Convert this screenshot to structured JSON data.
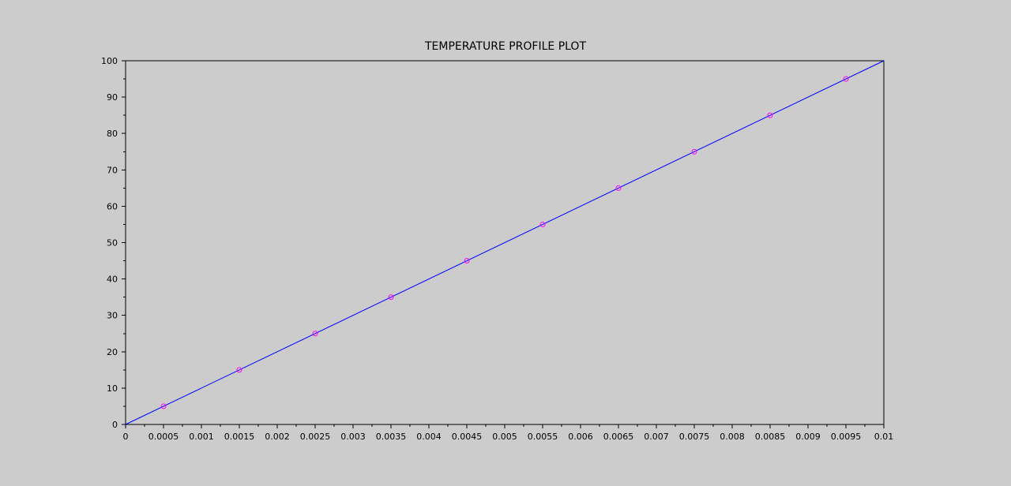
{
  "chart_data": {
    "type": "line",
    "title": "TEMPERATURE PROFILE PLOT",
    "xlabel": "",
    "ylabel": "",
    "xlim": [
      0,
      0.01
    ],
    "ylim": [
      0,
      100
    ],
    "x_ticks": [
      "0",
      "0.0005",
      "0.001",
      "0.0015",
      "0.002",
      "0.0025",
      "0.003",
      "0.0035",
      "0.004",
      "0.0045",
      "0.005",
      "0.0055",
      "0.006",
      "0.0065",
      "0.007",
      "0.0075",
      "0.008",
      "0.0085",
      "0.009",
      "0.0095",
      "0.01"
    ],
    "y_ticks": [
      "0",
      "10",
      "20",
      "30",
      "40",
      "50",
      "60",
      "70",
      "80",
      "90",
      "100"
    ],
    "grid": false,
    "legend": "none",
    "series": [
      {
        "style": "line",
        "color": "#0000ff",
        "x": [
          0,
          0.01
        ],
        "y": [
          0,
          100
        ]
      },
      {
        "style": "markers",
        "marker": "circle",
        "color": "#ff00ff",
        "x": [
          0.0005,
          0.0015,
          0.0025,
          0.0035,
          0.0045,
          0.0055,
          0.0065,
          0.0075,
          0.0085,
          0.0095
        ],
        "y": [
          5,
          15,
          25,
          35,
          45,
          55,
          65,
          75,
          85,
          95
        ]
      }
    ]
  }
}
